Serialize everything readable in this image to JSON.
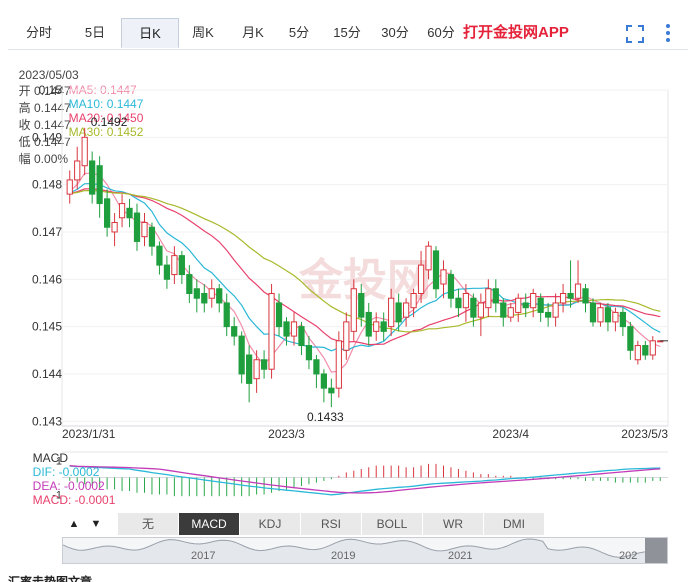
{
  "tabs": [
    {
      "label": "分时",
      "active": false
    },
    {
      "label": "5日",
      "active": false
    },
    {
      "label": "日K",
      "active": true
    },
    {
      "label": "周K",
      "active": false
    },
    {
      "label": "月K",
      "active": false
    },
    {
      "label": "5分",
      "active": false
    },
    {
      "label": "15分",
      "active": false
    },
    {
      "label": "30分",
      "active": false
    },
    {
      "label": "60分",
      "active": false
    }
  ],
  "promo_label": "打开金投网APP",
  "toolbar_icons": [
    "fullscreen-icon",
    "more-vertical-icon"
  ],
  "quote": {
    "date": "2023/05/03",
    "open": "开 0.1447",
    "high": "高 0.1447",
    "close": "收 0.1447",
    "low": "低 0.1447",
    "change": "幅 0.00%"
  },
  "ma_legend": [
    {
      "label": "MA5: 0.1447",
      "color": "#f28ca8"
    },
    {
      "label": "MA10: 0.1447",
      "color": "#2bb8d8"
    },
    {
      "label": "MA20: 0.1450",
      "color": "#e8416c"
    },
    {
      "label": "MA30: 0.1452",
      "color": "#a8b92a"
    }
  ],
  "macd_legend": [
    {
      "label": "MACD",
      "color": "#333333"
    },
    {
      "label": "DIF: -0.0002",
      "color": "#2bb8d8"
    },
    {
      "label": "DEA: -0.0002",
      "color": "#c23bb8"
    },
    {
      "label": "MACD: -0.0001",
      "color": "#e8416c"
    }
  ],
  "indicators": [
    {
      "label": "无",
      "active": false
    },
    {
      "label": "MACD",
      "active": true
    },
    {
      "label": "KDJ",
      "active": false
    },
    {
      "label": "RSI",
      "active": false
    },
    {
      "label": "BOLL",
      "active": false
    },
    {
      "label": "WR",
      "active": false
    },
    {
      "label": "DMI",
      "active": false
    }
  ],
  "nav_arrows": {
    "up": "▲",
    "down": "▼"
  },
  "navigator_years": [
    "2017",
    "2019",
    "2021",
    "202"
  ],
  "watermark": "金投网",
  "footer_title": "汇率走势图文章",
  "chart_data": {
    "type": "candlestick",
    "y_ticks": [
      "0.15",
      "0.149",
      "0.148",
      "0.147",
      "0.146",
      "0.145",
      "0.144",
      "0.143"
    ],
    "ylim": [
      0.1429,
      0.15
    ],
    "x_labels": [
      "2023/1/31",
      "2023/3",
      "2023/4",
      "2023/5/3"
    ],
    "annotations": {
      "high": "0.1492",
      "low": "0.1433"
    },
    "candles": [
      {
        "o": 0.1478,
        "c": 0.1481,
        "h": 0.1483,
        "l": 0.1476
      },
      {
        "o": 0.1481,
        "c": 0.1485,
        "h": 0.1488,
        "l": 0.1479
      },
      {
        "o": 0.1484,
        "c": 0.149,
        "h": 0.1492,
        "l": 0.1482
      },
      {
        "o": 0.1485,
        "c": 0.1478,
        "h": 0.1487,
        "l": 0.1476
      },
      {
        "o": 0.1484,
        "c": 0.1476,
        "h": 0.1486,
        "l": 0.1473
      },
      {
        "o": 0.1477,
        "c": 0.1471,
        "h": 0.1479,
        "l": 0.1469
      },
      {
        "o": 0.147,
        "c": 0.1472,
        "h": 0.1474,
        "l": 0.1467
      },
      {
        "o": 0.1473,
        "c": 0.1476,
        "h": 0.1478,
        "l": 0.1471
      },
      {
        "o": 0.1475,
        "c": 0.1473,
        "h": 0.1477,
        "l": 0.1471
      },
      {
        "o": 0.1474,
        "c": 0.1468,
        "h": 0.1476,
        "l": 0.1466
      },
      {
        "o": 0.1469,
        "c": 0.1472,
        "h": 0.1474,
        "l": 0.1467
      },
      {
        "o": 0.1471,
        "c": 0.1467,
        "h": 0.1472,
        "l": 0.1465
      },
      {
        "o": 0.1467,
        "c": 0.1463,
        "h": 0.1468,
        "l": 0.1461
      },
      {
        "o": 0.1463,
        "c": 0.146,
        "h": 0.1465,
        "l": 0.1458
      },
      {
        "o": 0.1461,
        "c": 0.1465,
        "h": 0.1467,
        "l": 0.1459
      },
      {
        "o": 0.1465,
        "c": 0.1461,
        "h": 0.1466,
        "l": 0.1459
      },
      {
        "o": 0.1461,
        "c": 0.1457,
        "h": 0.1463,
        "l": 0.1455
      },
      {
        "o": 0.1458,
        "c": 0.1456,
        "h": 0.146,
        "l": 0.1453
      },
      {
        "o": 0.1457,
        "c": 0.1455,
        "h": 0.1459,
        "l": 0.1453
      },
      {
        "o": 0.1456,
        "c": 0.1458,
        "h": 0.146,
        "l": 0.1454
      },
      {
        "o": 0.1458,
        "c": 0.1455,
        "h": 0.1459,
        "l": 0.1453
      },
      {
        "o": 0.1455,
        "c": 0.145,
        "h": 0.1457,
        "l": 0.1448
      },
      {
        "o": 0.145,
        "c": 0.1448,
        "h": 0.1452,
        "l": 0.1446
      },
      {
        "o": 0.1448,
        "c": 0.144,
        "h": 0.1449,
        "l": 0.1438
      },
      {
        "o": 0.1444,
        "c": 0.1438,
        "h": 0.1446,
        "l": 0.1434
      },
      {
        "o": 0.1439,
        "c": 0.1443,
        "h": 0.1445,
        "l": 0.1436
      },
      {
        "o": 0.1443,
        "c": 0.1441,
        "h": 0.1445,
        "l": 0.1439
      },
      {
        "o": 0.1441,
        "c": 0.1457,
        "h": 0.1459,
        "l": 0.1439
      },
      {
        "o": 0.1455,
        "c": 0.145,
        "h": 0.1457,
        "l": 0.1448
      },
      {
        "o": 0.1451,
        "c": 0.1448,
        "h": 0.1452,
        "l": 0.1446
      },
      {
        "o": 0.1448,
        "c": 0.1451,
        "h": 0.1453,
        "l": 0.1446
      },
      {
        "o": 0.145,
        "c": 0.1446,
        "h": 0.1451,
        "l": 0.1444
      },
      {
        "o": 0.1446,
        "c": 0.1443,
        "h": 0.1448,
        "l": 0.1441
      },
      {
        "o": 0.1443,
        "c": 0.144,
        "h": 0.1444,
        "l": 0.1437
      },
      {
        "o": 0.144,
        "c": 0.1437,
        "h": 0.1441,
        "l": 0.1434
      },
      {
        "o": 0.1437,
        "c": 0.1436,
        "h": 0.1439,
        "l": 0.1433
      },
      {
        "o": 0.1437,
        "c": 0.1447,
        "h": 0.1449,
        "l": 0.1435
      },
      {
        "o": 0.1445,
        "c": 0.1451,
        "h": 0.1453,
        "l": 0.1443
      },
      {
        "o": 0.1449,
        "c": 0.1458,
        "h": 0.146,
        "l": 0.1447
      },
      {
        "o": 0.1457,
        "c": 0.1452,
        "h": 0.1459,
        "l": 0.145
      },
      {
        "o": 0.1453,
        "c": 0.1448,
        "h": 0.1455,
        "l": 0.1446
      },
      {
        "o": 0.1449,
        "c": 0.1451,
        "h": 0.1453,
        "l": 0.1447
      },
      {
        "o": 0.1451,
        "c": 0.1449,
        "h": 0.1453,
        "l": 0.1447
      },
      {
        "o": 0.145,
        "c": 0.1456,
        "h": 0.1458,
        "l": 0.1448
      },
      {
        "o": 0.1455,
        "c": 0.1451,
        "h": 0.1457,
        "l": 0.1449
      },
      {
        "o": 0.1452,
        "c": 0.1455,
        "h": 0.1456,
        "l": 0.145
      },
      {
        "o": 0.1454,
        "c": 0.1457,
        "h": 0.1458,
        "l": 0.1452
      },
      {
        "o": 0.1457,
        "c": 0.1463,
        "h": 0.1466,
        "l": 0.1455
      },
      {
        "o": 0.1462,
        "c": 0.1467,
        "h": 0.1468,
        "l": 0.146
      },
      {
        "o": 0.1466,
        "c": 0.1458,
        "h": 0.1467,
        "l": 0.1456
      },
      {
        "o": 0.1459,
        "c": 0.1462,
        "h": 0.1464,
        "l": 0.1456
      },
      {
        "o": 0.1461,
        "c": 0.1456,
        "h": 0.1462,
        "l": 0.1454
      },
      {
        "o": 0.1456,
        "c": 0.1454,
        "h": 0.1458,
        "l": 0.1452
      },
      {
        "o": 0.1454,
        "c": 0.1457,
        "h": 0.1459,
        "l": 0.1451
      },
      {
        "o": 0.1456,
        "c": 0.1452,
        "h": 0.1457,
        "l": 0.145
      },
      {
        "o": 0.1452,
        "c": 0.1455,
        "h": 0.1457,
        "l": 0.1448
      },
      {
        "o": 0.1454,
        "c": 0.1458,
        "h": 0.146,
        "l": 0.1452
      },
      {
        "o": 0.1458,
        "c": 0.1455,
        "h": 0.146,
        "l": 0.1453
      },
      {
        "o": 0.1455,
        "c": 0.1452,
        "h": 0.1456,
        "l": 0.145
      },
      {
        "o": 0.1452,
        "c": 0.1454,
        "h": 0.1455,
        "l": 0.1451
      },
      {
        "o": 0.1453,
        "c": 0.1456,
        "h": 0.1457,
        "l": 0.1451
      },
      {
        "o": 0.1455,
        "c": 0.1454,
        "h": 0.1457,
        "l": 0.1452
      },
      {
        "o": 0.1454,
        "c": 0.1457,
        "h": 0.1458,
        "l": 0.1452
      },
      {
        "o": 0.1456,
        "c": 0.1453,
        "h": 0.1457,
        "l": 0.1451
      },
      {
        "o": 0.1453,
        "c": 0.1452,
        "h": 0.1455,
        "l": 0.145
      },
      {
        "o": 0.1452,
        "c": 0.1455,
        "h": 0.1457,
        "l": 0.145
      },
      {
        "o": 0.1455,
        "c": 0.1457,
        "h": 0.1459,
        "l": 0.1453
      },
      {
        "o": 0.1457,
        "c": 0.1456,
        "h": 0.1464,
        "l": 0.1454
      },
      {
        "o": 0.1456,
        "c": 0.1459,
        "h": 0.1464,
        "l": 0.1455
      },
      {
        "o": 0.1458,
        "c": 0.1455,
        "h": 0.1459,
        "l": 0.1453
      },
      {
        "o": 0.1455,
        "c": 0.1451,
        "h": 0.1456,
        "l": 0.145
      },
      {
        "o": 0.1451,
        "c": 0.1454,
        "h": 0.1455,
        "l": 0.145
      },
      {
        "o": 0.1454,
        "c": 0.1451,
        "h": 0.1455,
        "l": 0.1449
      },
      {
        "o": 0.1451,
        "c": 0.1453,
        "h": 0.1454,
        "l": 0.1449
      },
      {
        "o": 0.1453,
        "c": 0.145,
        "h": 0.1454,
        "l": 0.1448
      },
      {
        "o": 0.145,
        "c": 0.1445,
        "h": 0.1451,
        "l": 0.1443
      },
      {
        "o": 0.1443,
        "c": 0.1446,
        "h": 0.1447,
        "l": 0.1442
      },
      {
        "o": 0.1446,
        "c": 0.1444,
        "h": 0.1447,
        "l": 0.1443
      },
      {
        "o": 0.1444,
        "c": 0.1447,
        "h": 0.1448,
        "l": 0.1443
      },
      {
        "o": 0.1447,
        "c": 0.1447,
        "h": 0.1447,
        "l": 0.1447
      }
    ],
    "macd_ylim": [
      -1.5,
      1.5
    ],
    "macd_ticks": [
      "1",
      "-1"
    ],
    "macd_hist": [
      -0.2,
      -0.3,
      -0.4,
      -0.5,
      -0.6,
      -0.7,
      -0.7,
      -0.8,
      -0.8,
      -0.9,
      -0.9,
      -1.0,
      -1.0,
      -1.0,
      -1.1,
      -1.1,
      -1.1,
      -1.1,
      -1.1,
      -1.1,
      -1.1,
      -1.1,
      -1.1,
      -1.1,
      -1.1,
      -1.0,
      -1.0,
      -0.9,
      -0.8,
      -0.7,
      -0.6,
      -0.5,
      -0.4,
      -0.3,
      -0.2,
      -0.1,
      0.1,
      0.3,
      0.4,
      0.5,
      0.6,
      0.7,
      0.7,
      0.7,
      0.7,
      0.6,
      0.6,
      0.7,
      0.8,
      0.8,
      0.7,
      0.6,
      0.5,
      0.4,
      0.3,
      0.2,
      0.2,
      0.1,
      0.1,
      0.1,
      0.0,
      -0.1,
      -0.1,
      -0.1,
      -0.1,
      -0.1,
      -0.1,
      -0.1,
      -0.1,
      -0.2,
      -0.2,
      -0.2,
      -0.2,
      -0.3,
      -0.3,
      -0.3,
      -0.3,
      -0.3,
      -0.2,
      -0.2
    ]
  }
}
